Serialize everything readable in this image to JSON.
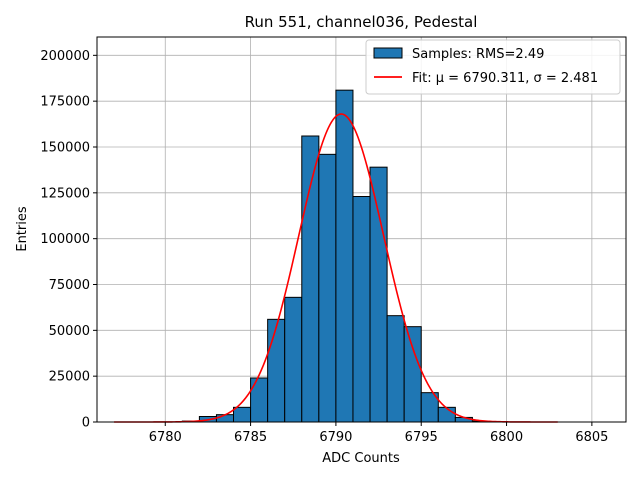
{
  "chart_data": {
    "type": "bar",
    "title": "Run 551, channel036, Pedestal",
    "xlabel": "ADC Counts",
    "ylabel": "Entries",
    "xlim": [
      6776,
      6807
    ],
    "ylim": [
      0,
      210000
    ],
    "xticks": [
      6780,
      6785,
      6790,
      6795,
      6800,
      6805
    ],
    "yticks": [
      0,
      25000,
      50000,
      75000,
      100000,
      125000,
      150000,
      175000,
      200000
    ],
    "grid": true,
    "legend_position": "top-right",
    "bin_width": 1,
    "histogram": {
      "name": "Samples: RMS=2.49",
      "color": "#1f77b4",
      "edge_color": "#000000",
      "bins": [
        6777,
        6778,
        6779,
        6780,
        6781,
        6782,
        6783,
        6784,
        6785,
        6786,
        6787,
        6788,
        6789,
        6790,
        6791,
        6792,
        6793,
        6794,
        6795,
        6796,
        6797,
        6798,
        6799,
        6800,
        6801,
        6802
      ],
      "values": [
        0,
        0,
        0,
        0,
        500,
        3000,
        4000,
        8000,
        24000,
        56000,
        68000,
        156000,
        146000,
        181000,
        123000,
        139000,
        58000,
        52000,
        16000,
        8000,
        2500,
        500,
        0,
        0,
        0,
        0
      ]
    },
    "fit": {
      "name": "Fit: μ = 6790.311, σ = 2.481",
      "color": "#ff0000",
      "mu": 6790.311,
      "sigma": 2.481,
      "amplitude": 168000,
      "x_range": [
        6777,
        6803
      ]
    }
  }
}
